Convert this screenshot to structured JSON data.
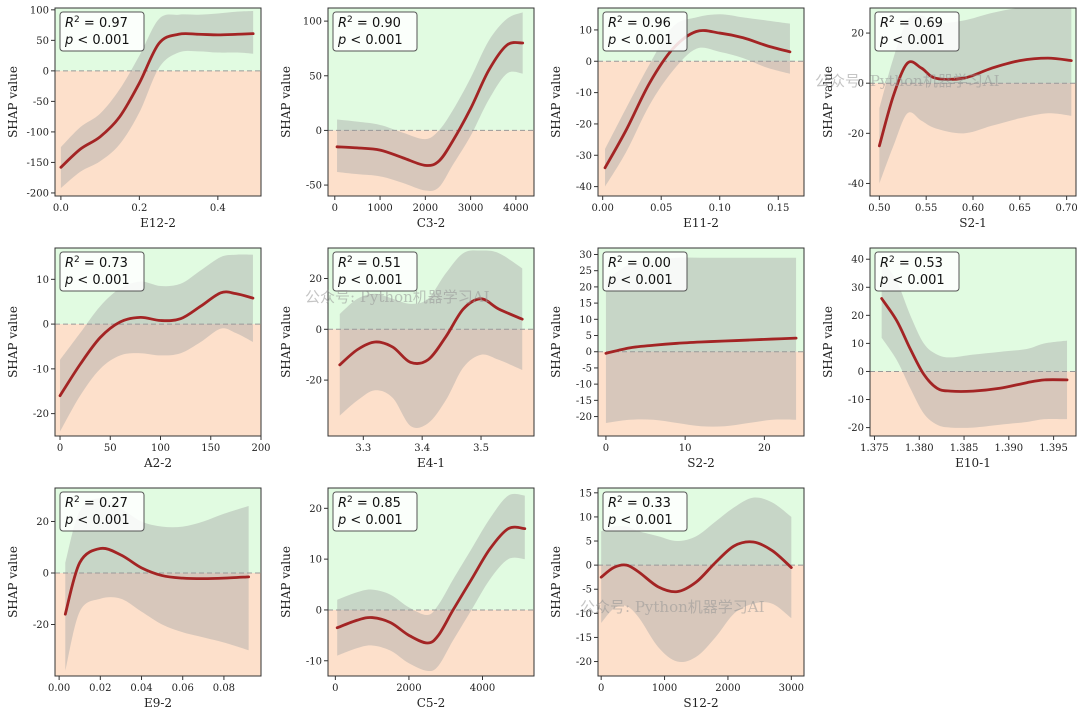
{
  "colors": {
    "positive_bg": "#e1fbe1",
    "negative_bg": "#fde0cb",
    "band": "#a9a9a9",
    "curve": "#a32424",
    "zero_line": "#999999"
  },
  "watermark_text": "公众号: Python机器学习AI",
  "chart_data": [
    {
      "type": "line",
      "title": "",
      "xlabel": "E12-2",
      "ylabel": "SHAP value",
      "r2": "= 0.97",
      "p": "< 0.001",
      "xlim": [
        -0.015,
        0.51
      ],
      "ylim": [
        -205,
        103
      ],
      "xticks": [
        0.0,
        0.2,
        0.4
      ],
      "xtick_labels": [
        "0.0",
        "0.2",
        "0.4"
      ],
      "yticks": [
        -200,
        -150,
        -100,
        -50,
        0,
        50,
        100
      ],
      "ytick_labels": [
        "-200",
        "-150",
        "-100",
        "-50",
        "0",
        "50",
        "100"
      ],
      "x": [
        0.0,
        0.05,
        0.1,
        0.15,
        0.2,
        0.25,
        0.3,
        0.35,
        0.4,
        0.45,
        0.49
      ],
      "y": [
        -158,
        -128,
        -108,
        -75,
        -20,
        45,
        60,
        60,
        59,
        60,
        61
      ],
      "lower": [
        -192,
        -165,
        -148,
        -120,
        -68,
        5,
        30,
        32,
        30,
        30,
        28
      ],
      "upper": [
        -125,
        -92,
        -70,
        -30,
        25,
        85,
        92,
        92,
        94,
        97,
        98
      ]
    },
    {
      "type": "line",
      "title": "",
      "xlabel": "C3-2",
      "ylabel": "SHAP value",
      "r2": "= 0.90",
      "p": "< 0.001",
      "xlim": [
        -150,
        4400
      ],
      "ylim": [
        -60,
        112
      ],
      "xticks": [
        0,
        1000,
        2000,
        3000,
        4000
      ],
      "xtick_labels": [
        "0",
        "1000",
        "2000",
        "3000",
        "4000"
      ],
      "yticks": [
        -50,
        0,
        50,
        100
      ],
      "ytick_labels": [
        "-50",
        "0",
        "50",
        "100"
      ],
      "x": [
        50,
        500,
        1000,
        1500,
        2000,
        2300,
        2600,
        3000,
        3400,
        3800,
        4150
      ],
      "y": [
        -15,
        -16,
        -18,
        -25,
        -32,
        -28,
        -10,
        20,
        55,
        78,
        80
      ],
      "lower": [
        -38,
        -40,
        -42,
        -48,
        -55,
        -52,
        -32,
        -5,
        28,
        52,
        52
      ],
      "upper": [
        10,
        8,
        5,
        -2,
        -8,
        0,
        18,
        48,
        82,
        102,
        108
      ]
    },
    {
      "type": "line",
      "title": "",
      "xlabel": "E11-2",
      "ylabel": "SHAP value",
      "r2": "= 0.96",
      "p": "< 0.001",
      "xlim": [
        -0.004,
        0.172
      ],
      "ylim": [
        -43,
        17
      ],
      "xticks": [
        0.0,
        0.05,
        0.1,
        0.15
      ],
      "xtick_labels": [
        "0.00",
        "0.05",
        "0.10",
        "0.15"
      ],
      "yticks": [
        -40,
        -30,
        -20,
        -10,
        0,
        10
      ],
      "ytick_labels": [
        "-40",
        "-30",
        "-20",
        "-10",
        "0",
        "10"
      ],
      "x": [
        0.002,
        0.02,
        0.04,
        0.06,
        0.08,
        0.1,
        0.12,
        0.14,
        0.16
      ],
      "y": [
        -34,
        -22,
        -7,
        4,
        9.5,
        9,
        7.5,
        5,
        3
      ],
      "lower": [
        -40,
        -29,
        -14,
        -3,
        4,
        3,
        1,
        -2,
        -4
      ],
      "upper": [
        -28,
        -15,
        -1,
        11,
        14,
        15,
        14,
        13,
        12
      ]
    },
    {
      "type": "line",
      "title": "",
      "xlabel": "S2-1",
      "ylabel": "SHAP value",
      "r2": "= 0.69",
      "p": "< 0.001",
      "xlim": [
        0.49,
        0.71
      ],
      "ylim": [
        -45,
        30
      ],
      "xticks": [
        0.5,
        0.55,
        0.6,
        0.65,
        0.7
      ],
      "xtick_labels": [
        "0.50",
        "0.55",
        "0.60",
        "0.65",
        "0.70"
      ],
      "yticks": [
        -40,
        -20,
        0,
        20
      ],
      "ytick_labels": [
        "-40",
        "-20",
        "0",
        "20"
      ],
      "x": [
        0.5,
        0.515,
        0.53,
        0.545,
        0.56,
        0.59,
        0.62,
        0.65,
        0.68,
        0.705
      ],
      "y": [
        -25,
        -5,
        8,
        6,
        2,
        2,
        6,
        9,
        10,
        9
      ],
      "lower": [
        -40,
        -25,
        -12,
        -15,
        -18,
        -20,
        -17,
        -14,
        -12,
        -13
      ],
      "upper": [
        -10,
        10,
        25,
        27,
        24,
        25,
        28,
        30,
        30,
        30
      ]
    },
    {
      "type": "line",
      "title": "",
      "xlabel": "A2-2",
      "ylabel": "SHAP value",
      "r2": "= 0.73",
      "p": "< 0.001",
      "xlim": [
        -5,
        200
      ],
      "ylim": [
        -25,
        17
      ],
      "xticks": [
        0,
        50,
        100,
        150,
        200
      ],
      "xtick_labels": [
        "0",
        "50",
        "100",
        "150",
        "200"
      ],
      "yticks": [
        -20,
        -10,
        0,
        10
      ],
      "ytick_labels": [
        "-20",
        "-10",
        "0",
        "10"
      ],
      "x": [
        0,
        20,
        40,
        60,
        80,
        100,
        120,
        140,
        160,
        175,
        192
      ],
      "y": [
        -16,
        -9,
        -3,
        0.5,
        1.5,
        0.8,
        1.2,
        4,
        7,
        6.8,
        5.8
      ],
      "lower": [
        -24,
        -16,
        -10,
        -7,
        -6.5,
        -7,
        -6.5,
        -4,
        -1,
        -2,
        -4
      ],
      "upper": [
        -8,
        -2,
        4,
        8,
        9.5,
        8.5,
        9,
        12,
        15,
        15.5,
        15.5
      ]
    },
    {
      "type": "line",
      "title": "",
      "xlabel": "E4-1",
      "ylabel": "SHAP value",
      "r2": "= 0.51",
      "p": "< 0.001",
      "xlim": [
        3.24,
        3.59
      ],
      "ylim": [
        -42,
        32
      ],
      "xticks": [
        3.3,
        3.4,
        3.5
      ],
      "xtick_labels": [
        "3.3",
        "3.4",
        "3.5"
      ],
      "yticks": [
        -20,
        0,
        20
      ],
      "ytick_labels": [
        "-20",
        "0",
        "20"
      ],
      "x": [
        3.26,
        3.29,
        3.32,
        3.35,
        3.38,
        3.41,
        3.44,
        3.47,
        3.5,
        3.53,
        3.57
      ],
      "y": [
        -14,
        -8,
        -5,
        -7,
        -13,
        -12,
        -3,
        8,
        12,
        8,
        4
      ],
      "lower": [
        -34,
        -28,
        -24,
        -27,
        -38,
        -37,
        -28,
        -15,
        -10,
        -12,
        -16
      ],
      "upper": [
        6,
        12,
        14,
        12,
        10,
        12,
        22,
        30,
        31,
        30,
        24
      ]
    },
    {
      "type": "line",
      "title": "",
      "xlabel": "S2-2",
      "ylabel": "SHAP value",
      "r2": "= 0.00",
      "p": "< 0.001",
      "xlim": [
        -1,
        25
      ],
      "ylim": [
        -26,
        32
      ],
      "xticks": [
        0,
        10,
        20
      ],
      "xtick_labels": [
        "0",
        "10",
        "20"
      ],
      "yticks": [
        -20,
        -15,
        -10,
        -5,
        0,
        5,
        10,
        15,
        20,
        25,
        30
      ],
      "ytick_labels": [
        "-20",
        "-15",
        "-10",
        "-5",
        "0",
        "5",
        "10",
        "15",
        "20",
        "25",
        "30"
      ],
      "x": [
        0,
        3,
        6,
        9,
        12,
        15,
        18,
        21,
        24
      ],
      "y": [
        -0.5,
        1.2,
        2,
        2.6,
        3,
        3.3,
        3.6,
        3.9,
        4.2
      ],
      "lower": [
        -22,
        -21,
        -21,
        -22,
        -23,
        -23,
        -22,
        -21,
        -21
      ],
      "upper": [
        22,
        27,
        28,
        29,
        29,
        29,
        29,
        29,
        29
      ]
    },
    {
      "type": "line",
      "title": "",
      "xlabel": "E10-1",
      "ylabel": "SHAP value",
      "r2": "= 0.53",
      "p": "< 0.001",
      "xlim": [
        1.3745,
        1.3975
      ],
      "ylim": [
        -23,
        44
      ],
      "xticks": [
        1.375,
        1.38,
        1.385,
        1.39,
        1.395
      ],
      "xtick_labels": [
        "1.375",
        "1.380",
        "1.385",
        "1.390",
        "1.395"
      ],
      "yticks": [
        -20,
        -10,
        0,
        10,
        20,
        30,
        40
      ],
      "ytick_labels": [
        "-20",
        "-10",
        "0",
        "10",
        "20",
        "30",
        "40"
      ],
      "x": [
        1.3758,
        1.3775,
        1.379,
        1.3805,
        1.382,
        1.3835,
        1.386,
        1.389,
        1.392,
        1.394,
        1.3965
      ],
      "y": [
        26,
        18,
        8,
        -1,
        -6,
        -7,
        -7,
        -6,
        -4,
        -3,
        -3
      ],
      "lower": [
        12,
        4,
        -6,
        -15,
        -19,
        -20,
        -20,
        -19,
        -18,
        -17,
        -17
      ],
      "upper": [
        40,
        32,
        20,
        10,
        6,
        5,
        6,
        7,
        8,
        10,
        11
      ]
    },
    {
      "type": "line",
      "title": "",
      "xlabel": "E9-2",
      "ylabel": "SHAP value",
      "r2": "= 0.27",
      "p": "< 0.001",
      "xlim": [
        -0.002,
        0.098
      ],
      "ylim": [
        -40,
        33
      ],
      "xticks": [
        0.0,
        0.02,
        0.04,
        0.06,
        0.08
      ],
      "xtick_labels": [
        "0.00",
        "0.02",
        "0.04",
        "0.06",
        "0.08"
      ],
      "yticks": [
        -20,
        0,
        20
      ],
      "ytick_labels": [
        "-20",
        "0",
        "20"
      ],
      "x": [
        0.003,
        0.01,
        0.02,
        0.03,
        0.04,
        0.05,
        0.06,
        0.07,
        0.08,
        0.092
      ],
      "y": [
        -16,
        4,
        9.5,
        7,
        2,
        -1,
        -2,
        -2.2,
        -2,
        -1.5
      ],
      "lower": [
        -38,
        -15,
        -10,
        -10,
        -15,
        -20,
        -23,
        -25,
        -27,
        -30
      ],
      "upper": [
        4,
        24,
        29,
        25,
        20,
        18,
        18,
        20,
        23,
        26
      ]
    },
    {
      "type": "line",
      "title": "",
      "xlabel": "C5-2",
      "ylabel": "SHAP value",
      "r2": "= 0.85",
      "p": "< 0.001",
      "xlim": [
        -200,
        5400
      ],
      "ylim": [
        -13,
        24
      ],
      "xticks": [
        0,
        2000,
        4000
      ],
      "xtick_labels": [
        "0",
        "2000",
        "4000"
      ],
      "yticks": [
        -10,
        0,
        10,
        20
      ],
      "ytick_labels": [
        "-10",
        "0",
        "10",
        "20"
      ],
      "x": [
        50,
        600,
        1000,
        1500,
        2000,
        2500,
        2800,
        3200,
        3700,
        4200,
        4700,
        5150
      ],
      "y": [
        -3.5,
        -2,
        -1.5,
        -2.5,
        -5,
        -6.5,
        -5,
        0,
        6,
        12,
        16,
        16
      ],
      "lower": [
        -9,
        -7.5,
        -7,
        -8,
        -10.5,
        -12,
        -11,
        -6,
        0,
        6,
        10,
        10
      ],
      "upper": [
        2,
        3.5,
        4,
        3,
        0.5,
        -1,
        1,
        6,
        12,
        18,
        22.5,
        22.5
      ]
    },
    {
      "type": "line",
      "title": "",
      "xlabel": "S12-2",
      "ylabel": "SHAP value",
      "r2": "= 0.33",
      "p": "< 0.001",
      "xlim": [
        -50,
        3200
      ],
      "ylim": [
        -23,
        16
      ],
      "xticks": [
        0,
        1000,
        2000,
        3000
      ],
      "xtick_labels": [
        "0",
        "1000",
        "2000",
        "3000"
      ],
      "yticks": [
        -20,
        -15,
        -10,
        -5,
        0,
        5,
        10,
        15
      ],
      "ytick_labels": [
        "-20",
        "-15",
        "-10",
        "-5",
        "0",
        "5",
        "10",
        "15"
      ],
      "x": [
        0,
        200,
        400,
        600,
        900,
        1200,
        1500,
        1800,
        2100,
        2400,
        2700,
        3000
      ],
      "y": [
        -2.5,
        -0.5,
        0,
        -1.5,
        -4.5,
        -5.5,
        -3.5,
        0.5,
        4,
        4.8,
        3,
        -0.5
      ],
      "lower": [
        -12,
        -9,
        -8.5,
        -11,
        -17,
        -20,
        -19,
        -15,
        -10,
        -8,
        -8,
        -11
      ],
      "upper": [
        7,
        8,
        8,
        7,
        6,
        5,
        6,
        9,
        12,
        14,
        13,
        10
      ]
    }
  ]
}
